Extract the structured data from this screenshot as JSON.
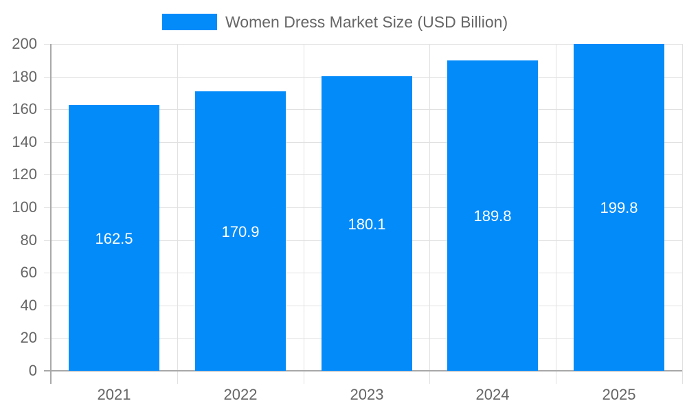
{
  "chart_data": {
    "type": "bar",
    "title": "",
    "legend": [
      {
        "label": "Women Dress Market Size (USD Billion)",
        "color": "#038bfa"
      }
    ],
    "legend_position": "top",
    "categories": [
      "2021",
      "2022",
      "2023",
      "2024",
      "2025"
    ],
    "series": [
      {
        "name": "Women Dress Market Size (USD Billion)",
        "values": [
          162.5,
          170.9,
          180.1,
          189.8,
          199.8
        ],
        "color": "#038bfa"
      }
    ],
    "data_labels": [
      "162.5",
      "170.9",
      "180.1",
      "189.8",
      "199.8"
    ],
    "xlabel": "",
    "ylabel": "",
    "ylim": [
      0,
      200
    ],
    "yticks": [
      "0",
      "20",
      "40",
      "60",
      "80",
      "100",
      "120",
      "140",
      "160",
      "180",
      "200"
    ],
    "grid": true
  }
}
